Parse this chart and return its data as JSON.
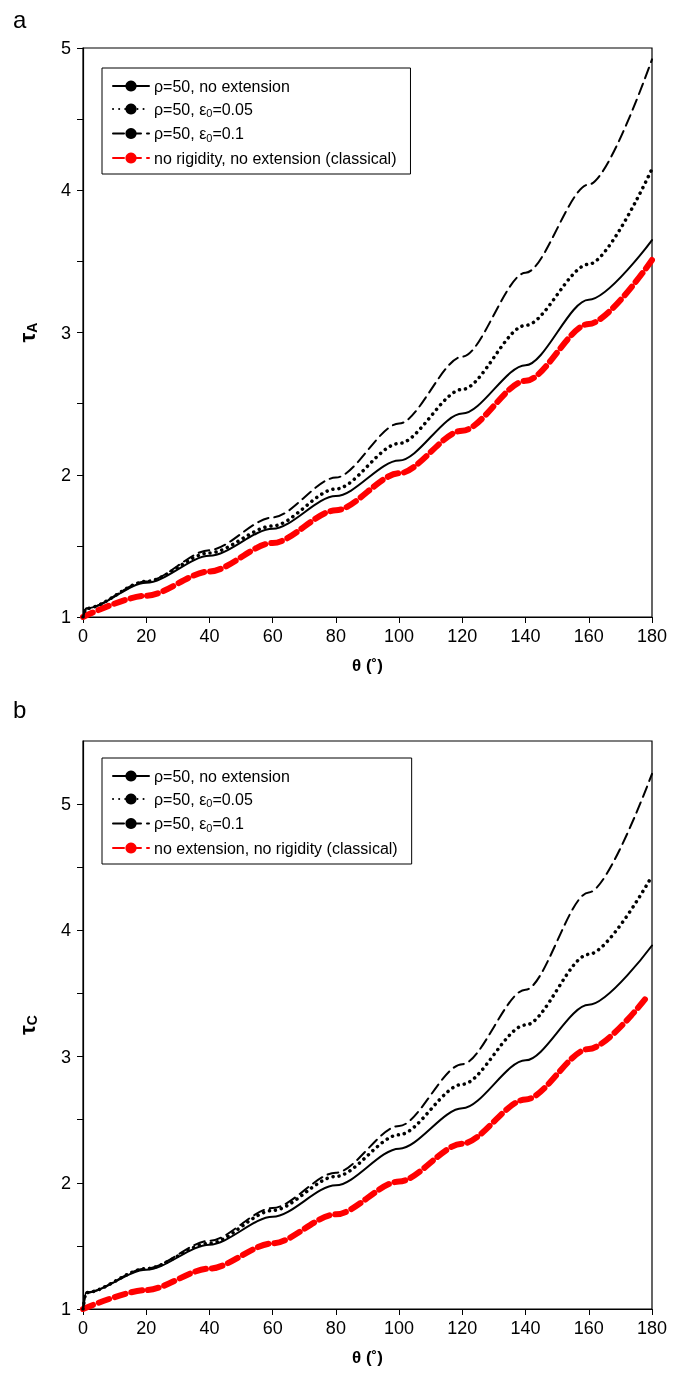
{
  "chart_data": [
    {
      "type": "line",
      "title": "a",
      "xlabel": "θ (˚)",
      "ylabel": "τ$_{A}$",
      "legend": "top left",
      "grid": false,
      "marker": "none",
      "xlim": [
        0,
        180
      ],
      "xticks": [
        0,
        20,
        40,
        60,
        80,
        100,
        120,
        140,
        160,
        180
      ],
      "ylim": [
        1,
        5
      ],
      "yticks": [
        1,
        {
          "value": 1.5,
          "label": null
        },
        2,
        {
          "value": 2.5,
          "label": null
        },
        3,
        {
          "value": 3.5,
          "label": null
        },
        4,
        {
          "value": 4.5,
          "label": null
        },
        5
      ],
      "x": [
        0,
        1,
        20,
        40,
        60,
        80,
        100,
        120,
        140,
        160,
        180
      ],
      "series": [
        {
          "name": "ρ=50, no extension",
          "color": "#000000",
          "line_style": "solid",
          "values": [
            1,
            1.06,
            1.24,
            1.43,
            1.62,
            1.85,
            2.1,
            2.43,
            2.77,
            3.23,
            3.65
          ]
        },
        {
          "name": "ρ=50, ε$_{0}$=0.05",
          "color": "#000000",
          "line_style": "dotted",
          "values": [
            1,
            1.06,
            1.25,
            1.45,
            1.64,
            1.9,
            2.22,
            2.6,
            3.05,
            3.48,
            4.15
          ]
        },
        {
          "name": "ρ=50, ε$_{0}$=0.1",
          "color": "#000000",
          "line_style": "dashed",
          "values": [
            1,
            1.06,
            1.25,
            1.47,
            1.7,
            1.98,
            2.36,
            2.83,
            3.42,
            4.04,
            4.92
          ]
        },
        {
          "name": "no rigidity, no extension (classical)",
          "color": "#ff0000",
          "line_style": "dashed",
          "x": [
            0,
            20,
            40,
            60,
            80,
            100,
            120,
            140,
            160,
            180
          ],
          "values": [
            1,
            1.15,
            1.32,
            1.52,
            1.75,
            2.01,
            2.31,
            2.66,
            3.06,
            3.51
          ]
        }
      ]
    },
    {
      "type": "line",
      "title": "b",
      "xlabel": "θ (˚)",
      "ylabel": "τ$_{C}$",
      "legend": "top left",
      "grid": false,
      "marker": "none",
      "xlim": [
        0,
        180
      ],
      "xticks": [
        0,
        20,
        40,
        60,
        80,
        100,
        120,
        140,
        160,
        180
      ],
      "ylim": [
        1,
        5.5
      ],
      "yticks": [
        1,
        {
          "value": 1.5,
          "label": null
        },
        2,
        {
          "value": 2.5,
          "label": null
        },
        3,
        {
          "value": 3.5,
          "label": null
        },
        4,
        {
          "value": 4.5,
          "label": null
        },
        5
      ],
      "x": [
        0,
        1,
        20,
        40,
        60,
        80,
        100,
        120,
        140,
        160,
        180
      ],
      "series": [
        {
          "name": "ρ=50, no extension",
          "color": "#000000",
          "line_style": "solid",
          "values": [
            1,
            1.13,
            1.31,
            1.51,
            1.73,
            1.98,
            2.27,
            2.59,
            2.97,
            3.41,
            3.88
          ]
        },
        {
          "name": "ρ=50, ε$_{0}$=0.05",
          "color": "#000000",
          "line_style": "dotted",
          "values": [
            1,
            1.13,
            1.32,
            1.52,
            1.78,
            2.05,
            2.38,
            2.78,
            3.25,
            3.81,
            4.43
          ]
        },
        {
          "name": "ρ=50, ε$_{0}$=0.1",
          "color": "#000000",
          "line_style": "dashed",
          "values": [
            1,
            1.13,
            1.32,
            1.54,
            1.8,
            2.08,
            2.45,
            2.94,
            3.53,
            4.3,
            5.24
          ]
        },
        {
          "name": "no extension, no rigidity (classical)",
          "color": "#ff0000",
          "line_style": "dashed",
          "x": [
            0,
            20,
            40,
            60,
            80,
            100,
            120,
            140,
            160,
            178
          ],
          "values": [
            1,
            1.15,
            1.32,
            1.52,
            1.75,
            2.01,
            2.31,
            2.66,
            3.06,
            3.46
          ]
        }
      ]
    }
  ]
}
